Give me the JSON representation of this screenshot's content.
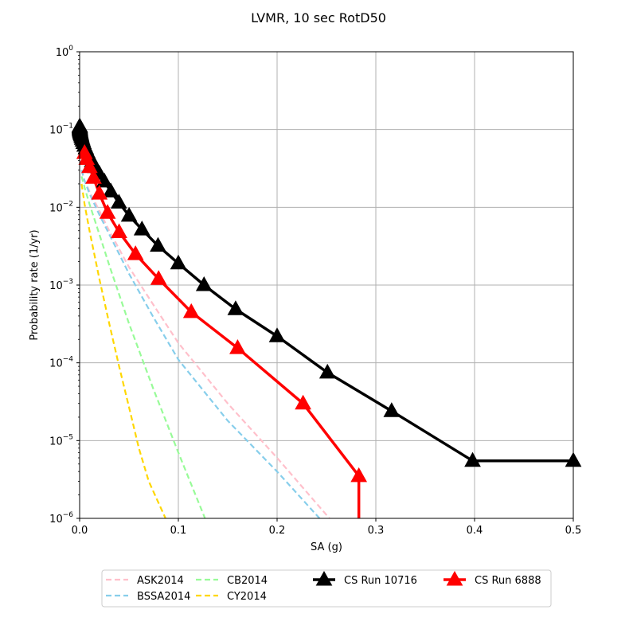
{
  "chart_data": {
    "type": "line",
    "title": "LVMR, 10 sec RotD50",
    "xlabel": "SA (g)",
    "ylabel": "Probability rate (1/yr)",
    "xlim": [
      0,
      0.5
    ],
    "ylim": [
      1e-06,
      1
    ],
    "yscale": "log",
    "grid": true,
    "legend_position": "below-center",
    "x_ticks": [
      {
        "value": 0,
        "label": "0.0"
      },
      {
        "value": 0.1,
        "label": "0.1"
      },
      {
        "value": 0.2,
        "label": "0.2"
      },
      {
        "value": 0.3,
        "label": "0.3"
      },
      {
        "value": 0.4,
        "label": "0.4"
      },
      {
        "value": 0.5,
        "label": "0.5"
      }
    ],
    "y_ticks": [
      {
        "value": 1e-06,
        "base": "10",
        "exp": "−6"
      },
      {
        "value": 1e-05,
        "base": "10",
        "exp": "−5"
      },
      {
        "value": 0.0001,
        "base": "10",
        "exp": "−4"
      },
      {
        "value": 0.001,
        "base": "10",
        "exp": "−3"
      },
      {
        "value": 0.01,
        "base": "10",
        "exp": "−2"
      },
      {
        "value": 0.1,
        "base": "10",
        "exp": "−1"
      },
      {
        "value": 1,
        "base": "10",
        "exp": "0"
      }
    ],
    "series": [
      {
        "name": "ASK2014",
        "color": "#ffc0cb",
        "style": "dashed",
        "marker": "none",
        "x": [
          0.002,
          0.005,
          0.01,
          0.02,
          0.03,
          0.05,
          0.075,
          0.1,
          0.15,
          0.2,
          0.253
        ],
        "y": [
          0.03,
          0.022,
          0.016,
          0.009,
          0.005,
          0.0017,
          0.00055,
          0.00018,
          3e-05,
          6e-06,
          1e-06
        ]
      },
      {
        "name": "BSSA2014",
        "color": "#87ceeb",
        "style": "dashed",
        "marker": "none",
        "x": [
          0.002,
          0.005,
          0.01,
          0.02,
          0.03,
          0.05,
          0.075,
          0.1,
          0.15,
          0.2,
          0.243
        ],
        "y": [
          0.03,
          0.022,
          0.015,
          0.008,
          0.0045,
          0.0014,
          0.00038,
          0.00011,
          1.8e-05,
          4e-06,
          1e-06
        ]
      },
      {
        "name": "CB2014",
        "color": "#98fb98",
        "style": "dashed",
        "marker": "none",
        "x": [
          0.002,
          0.005,
          0.01,
          0.02,
          0.03,
          0.05,
          0.075,
          0.1,
          0.127
        ],
        "y": [
          0.025,
          0.018,
          0.011,
          0.0045,
          0.0018,
          0.00032,
          4.5e-05,
          7e-06,
          1e-06
        ]
      },
      {
        "name": "CY2014",
        "color": "#ffd700",
        "style": "dashed",
        "marker": "none",
        "x": [
          0.002,
          0.005,
          0.01,
          0.02,
          0.03,
          0.04,
          0.05,
          0.06,
          0.07,
          0.087
        ],
        "y": [
          0.02,
          0.011,
          0.005,
          0.0012,
          0.00032,
          9e-05,
          2.7e-05,
          8e-06,
          3e-06,
          1e-06
        ]
      },
      {
        "name": "CS Run 10716",
        "color": "#000000",
        "style": "solid",
        "marker": "triangle",
        "x": [
          0.0001,
          0.000126,
          0.000158,
          0.0002,
          0.000251,
          0.000316,
          0.000398,
          0.000501,
          0.000631,
          0.000794,
          0.001,
          0.00126,
          0.00158,
          0.002,
          0.00251,
          0.00316,
          0.00398,
          0.00501,
          0.00631,
          0.00794,
          0.01,
          0.0126,
          0.0158,
          0.02,
          0.0251,
          0.0316,
          0.0398,
          0.0501,
          0.0631,
          0.0794,
          0.1,
          0.126,
          0.158,
          0.2,
          0.251,
          0.316,
          0.398,
          0.5
        ],
        "y": [
          0.11,
          0.108,
          0.106,
          0.104,
          0.102,
          0.1,
          0.098,
          0.096,
          0.094,
          0.092,
          0.09,
          0.087,
          0.084,
          0.08,
          0.076,
          0.072,
          0.067,
          0.062,
          0.057,
          0.051,
          0.045,
          0.039,
          0.033,
          0.027,
          0.0215,
          0.016,
          0.0115,
          0.0078,
          0.0052,
          0.0032,
          0.0019,
          0.001,
          0.00049,
          0.00022,
          7.5e-05,
          2.4e-05,
          5.5e-06,
          5.5e-06
        ]
      },
      {
        "name": "CS Run 6888",
        "color": "#ff0000",
        "style": "solid",
        "marker": "triangle",
        "x": [
          0.005,
          0.0071,
          0.01,
          0.0141,
          0.02,
          0.0283,
          0.04,
          0.0566,
          0.08,
          0.1131,
          0.16,
          0.2263,
          0.2828
        ],
        "y": [
          0.05,
          0.042,
          0.033,
          0.024,
          0.015,
          0.0085,
          0.0048,
          0.0025,
          0.0012,
          0.00045,
          0.000155,
          3e-05,
          3.5e-06
        ]
      }
    ]
  }
}
